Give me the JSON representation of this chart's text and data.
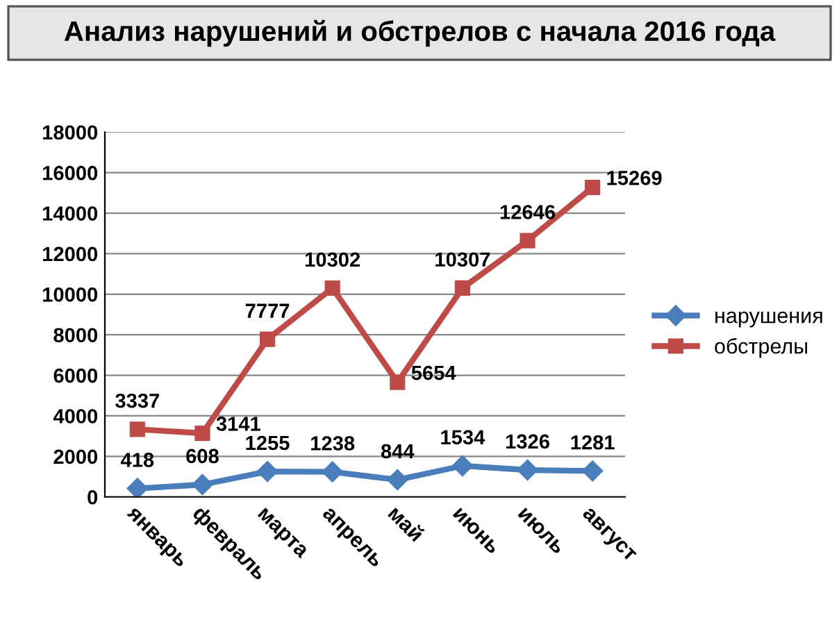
{
  "chart_data": {
    "type": "line",
    "title": "Анализ нарушений и обстрелов с начала 2016 года",
    "categories": [
      "январь",
      "февраль",
      "марта",
      "апрель",
      "май",
      "июнь",
      "июль",
      "август"
    ],
    "series": [
      {
        "name": "нарушения",
        "color": "#4a7ebb",
        "values": [
          418,
          608,
          1255,
          1238,
          844,
          1534,
          1326,
          1281
        ],
        "marker": "diamond"
      },
      {
        "name": "обстрелы",
        "color": "#be4b48",
        "values": [
          3337,
          3141,
          7777,
          10302,
          5654,
          10307,
          12646,
          15269
        ],
        "marker": "square"
      }
    ],
    "ylim": [
      0,
      18000
    ],
    "yticks": [
      0,
      2000,
      4000,
      6000,
      8000,
      10000,
      12000,
      14000,
      16000,
      18000
    ],
    "grid": "y",
    "legend": "right",
    "data_labels": true,
    "line_style": "solid"
  }
}
